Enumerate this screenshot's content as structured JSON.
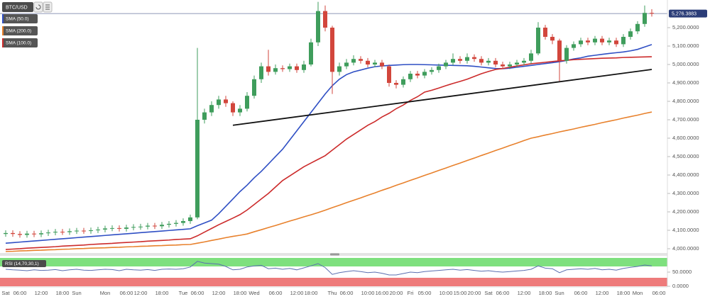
{
  "chart_data": {
    "type": "candlestick",
    "title": "BTC/USD",
    "categories": [
      "Sat",
      null,
      "06:00",
      null,
      null,
      "12:00",
      null,
      null,
      "18:00",
      null,
      "Sun",
      null,
      null,
      null,
      "Mon",
      null,
      null,
      "06:00",
      null,
      "12:00",
      null,
      null,
      "18:00",
      null,
      null,
      "Tue",
      null,
      "06:00",
      null,
      null,
      "12:00",
      null,
      null,
      "18:00",
      null,
      "Wed",
      null,
      null,
      "06:00",
      null,
      null,
      "12:00",
      null,
      "18:00",
      null,
      null,
      "Thu",
      null,
      "06:00",
      null,
      null,
      "10:00",
      null,
      "16:00",
      null,
      "20:00",
      null,
      "Fri",
      null,
      "05:00",
      null,
      null,
      "10:00",
      null,
      "15:00",
      null,
      "20:00",
      null,
      "Sat",
      null,
      "06:00",
      null,
      null,
      "12:00",
      null,
      null,
      "18:00",
      null,
      "Sun",
      null,
      null,
      "06:00",
      null,
      null,
      "12:00",
      null,
      null,
      "18:00",
      null,
      "Mon",
      null,
      null,
      "06:00",
      null
    ],
    "open": [
      4080,
      4085,
      4080,
      4075,
      4082,
      4078,
      4084,
      4088,
      4092,
      4090,
      4095,
      4098,
      4096,
      4100,
      4104,
      4110,
      4112,
      4108,
      4115,
      4118,
      4120,
      4125,
      4122,
      4130,
      4135,
      4140,
      4150,
      4170,
      4700,
      4740,
      4780,
      4810,
      4790,
      4740,
      4760,
      4830,
      4920,
      4990,
      4960,
      4980,
      4975,
      4990,
      4970,
      5000,
      5120,
      5290,
      5200,
      4960,
      4990,
      5010,
      5030,
      5020,
      5000,
      5010,
      4990,
      4900,
      4890,
      4920,
      4950,
      4940,
      4960,
      4970,
      4990,
      5010,
      5030,
      5020,
      5040,
      5030,
      5010,
      5020,
      5000,
      4990,
      5000,
      5010,
      5020,
      5060,
      5200,
      5150,
      5130,
      5020,
      5090,
      5110,
      5130,
      5120,
      5140,
      5120,
      5130,
      5110,
      5150,
      5180,
      5220,
      5280,
      null,
      null
    ],
    "high": [
      4100,
      4100,
      4095,
      4097,
      4097,
      4099,
      4103,
      4107,
      4107,
      4110,
      4113,
      4113,
      4115,
      4119,
      4125,
      4127,
      4127,
      4130,
      4133,
      4135,
      4140,
      4140,
      4145,
      4150,
      4155,
      4165,
      4185,
      5090,
      4760,
      4800,
      4830,
      4830,
      4800,
      4780,
      4850,
      4940,
      5010,
      5080,
      5000,
      4995,
      5005,
      5005,
      5020,
      5140,
      5340,
      5320,
      5210,
      5010,
      5030,
      5050,
      5045,
      5035,
      5025,
      5025,
      5000,
      4915,
      4935,
      4965,
      4965,
      4975,
      4985,
      5005,
      5025,
      5060,
      5045,
      5060,
      5055,
      5045,
      5035,
      5035,
      5015,
      5015,
      5025,
      5035,
      5080,
      5230,
      5215,
      5165,
      5140,
      5105,
      5125,
      5145,
      5145,
      5155,
      5155,
      5145,
      5145,
      5165,
      5195,
      5235,
      5320,
      5300,
      null,
      null
    ],
    "low": [
      4065,
      4065,
      4060,
      4060,
      4063,
      4063,
      4069,
      4073,
      4075,
      4075,
      4080,
      4081,
      4081,
      4085,
      4089,
      4095,
      4093,
      4093,
      4100,
      4103,
      4105,
      4107,
      4107,
      4115,
      4120,
      4125,
      4135,
      4160,
      4680,
      4720,
      4760,
      4770,
      4720,
      4720,
      4745,
      4815,
      4900,
      4940,
      4945,
      4960,
      4960,
      4955,
      4955,
      4990,
      5100,
      5180,
      4840,
      4940,
      4975,
      4995,
      5005,
      4985,
      4985,
      4975,
      4880,
      4870,
      4875,
      4905,
      4925,
      4925,
      4945,
      4955,
      4975,
      4995,
      5005,
      5005,
      5015,
      4995,
      4995,
      4985,
      4975,
      4975,
      4985,
      4995,
      5005,
      5050,
      5135,
      5110,
      4910,
      5005,
      5075,
      5095,
      5105,
      5105,
      5105,
      5105,
      5095,
      5095,
      5135,
      5165,
      5205,
      5260,
      null,
      null
    ],
    "close": [
      4085,
      4080,
      4075,
      4082,
      4078,
      4084,
      4088,
      4092,
      4090,
      4095,
      4098,
      4096,
      4100,
      4104,
      4110,
      4112,
      4108,
      4115,
      4118,
      4120,
      4125,
      4122,
      4130,
      4135,
      4140,
      4150,
      4170,
      4700,
      4740,
      4780,
      4810,
      4790,
      4740,
      4760,
      4830,
      4920,
      4990,
      4960,
      4980,
      4975,
      4990,
      4970,
      5000,
      5120,
      5290,
      5200,
      4960,
      4990,
      5010,
      5030,
      5020,
      5000,
      5010,
      4990,
      4900,
      4890,
      4920,
      4950,
      4940,
      4960,
      4970,
      4990,
      5010,
      5030,
      5020,
      5040,
      5030,
      5010,
      5020,
      5000,
      4990,
      5000,
      5010,
      5020,
      5060,
      5200,
      5150,
      5130,
      5020,
      5090,
      5110,
      5130,
      5120,
      5140,
      5120,
      5130,
      5110,
      5150,
      5180,
      5220,
      5280,
      5276,
      null,
      null
    ],
    "up_color": "#3f9d5c",
    "down_color": "#d2463c",
    "ylim": [
      3973,
      5350
    ],
    "yticks": [
      {
        "value": 4000,
        "label": "4,000.0000"
      },
      {
        "value": 4100,
        "label": "4,100.0000"
      },
      {
        "value": 4200,
        "label": "4,200.0000"
      },
      {
        "value": 4300,
        "label": "4,300.0000"
      },
      {
        "value": 4400,
        "label": "4,400.0000"
      },
      {
        "value": 4500,
        "label": "4,500.0000"
      },
      {
        "value": 4600,
        "label": "4,600.0000"
      },
      {
        "value": 4700,
        "label": "4,700.0000"
      },
      {
        "value": 4800,
        "label": "4,800.0000"
      },
      {
        "value": 4900,
        "label": "4,900.0000"
      },
      {
        "value": 5000,
        "label": "5,000.0000"
      },
      {
        "value": 5100,
        "label": "5,100.0000"
      },
      {
        "value": 5200,
        "label": "5,200.0000"
      }
    ],
    "grid": false,
    "series": [
      {
        "name": "SMA (50.0)",
        "color": "#2f4fc4",
        "values": [
          4030,
          4033,
          4036,
          4039,
          4042,
          4045,
          4048,
          4051,
          4054,
          4057,
          4060,
          4063,
          4066,
          4069,
          4072,
          4075,
          4078,
          4081,
          4084,
          4087,
          4090,
          4093,
          4096,
          4099,
          4102,
          4105,
          4108,
          4125,
          4140,
          4155,
          4190,
          4230,
          4270,
          4310,
          4345,
          4385,
          4420,
          4460,
          4500,
          4540,
          4590,
          4640,
          4690,
          4740,
          4790,
          4840,
          4885,
          4920,
          4945,
          4960,
          4970,
          4980,
          4988,
          4992,
          4995,
          4997,
          4999,
          5000,
          5000,
          4999,
          4998,
          4997,
          4996,
          4995,
          4994,
          4993,
          4990,
          4986,
          4982,
          4978,
          4977,
          4980,
          4985,
          4990,
          4995,
          5000,
          5005,
          5010,
          5015,
          5022,
          5030,
          5036,
          5045,
          5050,
          5055,
          5060,
          5064,
          5068,
          5074,
          5082,
          5095,
          5108,
          null,
          null
        ]
      },
      {
        "name": "SMA (200.0)",
        "color": "#e8812c",
        "values": [
          3985,
          3986,
          3988,
          3989,
          3991,
          3992,
          3994,
          3995,
          3997,
          3998,
          4000,
          4001,
          4003,
          4004,
          4005,
          4007,
          4008,
          4010,
          4011,
          4013,
          4014,
          4016,
          4017,
          4019,
          4020,
          4022,
          4023,
          4030,
          4037,
          4045,
          4052,
          4060,
          4067,
          4073,
          4080,
          4092,
          4103,
          4115,
          4126,
          4138,
          4150,
          4161,
          4173,
          4184,
          4196,
          4209,
          4223,
          4236,
          4250,
          4263,
          4276,
          4290,
          4303,
          4317,
          4330,
          4344,
          4357,
          4371,
          4384,
          4398,
          4411,
          4425,
          4438,
          4452,
          4465,
          4479,
          4492,
          4506,
          4519,
          4533,
          4546,
          4560,
          4573,
          4587,
          4600,
          4608,
          4617,
          4625,
          4634,
          4642,
          4650,
          4659,
          4667,
          4675,
          4684,
          4692,
          4700,
          4709,
          4717,
          4725,
          4734,
          4742,
          null,
          null
        ]
      },
      {
        "name": "SMA (100.0)",
        "color": "#cc2b2b",
        "values": [
          3996,
          3998,
          4000,
          4003,
          4005,
          4007,
          4009,
          4011,
          4014,
          4016,
          4018,
          4020,
          4023,
          4025,
          4027,
          4029,
          4032,
          4034,
          4036,
          4038,
          4041,
          4043,
          4045,
          4047,
          4050,
          4052,
          4054,
          4070,
          4090,
          4110,
          4130,
          4148,
          4166,
          4185,
          4210,
          4240,
          4270,
          4300,
          4335,
          4370,
          4395,
          4420,
          4445,
          4465,
          4485,
          4505,
          4535,
          4565,
          4595,
          4620,
          4645,
          4670,
          4690,
          4715,
          4735,
          4760,
          4780,
          4805,
          4825,
          4850,
          4860,
          4872,
          4885,
          4897,
          4908,
          4920,
          4935,
          4950,
          4962,
          4973,
          4978,
          4985,
          4992,
          4998,
          5004,
          5008,
          5012,
          5016,
          5020,
          5023,
          5026,
          5028,
          5030,
          5032,
          5034,
          5035,
          5036,
          5038,
          5039,
          5040,
          5041,
          5042,
          null,
          null
        ]
      }
    ],
    "trendline": {
      "color": "#111111",
      "x": [
        32,
        91
      ],
      "y": [
        4670,
        4973
      ]
    },
    "last_price": {
      "value": 5276.3883,
      "label": "5,276.3883",
      "color": "#2b3d78"
    },
    "rsi": {
      "name": "RSI (14,70,30,1)",
      "color": "#5b6fb0",
      "ylim": [
        0,
        100
      ],
      "yticks": [
        {
          "value": 0,
          "label": "0.0000"
        },
        {
          "value": 50,
          "label": "50.0000"
        }
      ],
      "upper_band": 70,
      "upper_color": "#7ee07e",
      "lower_band": 30,
      "lower_color": "#ee7b7b",
      "values": [
        60,
        58,
        57,
        55,
        58,
        56,
        57,
        59,
        55,
        58,
        60,
        57,
        56,
        58,
        60,
        59,
        55,
        60,
        58,
        57,
        59,
        56,
        60,
        61,
        60,
        62,
        68,
        88,
        82,
        80,
        78,
        70,
        58,
        60,
        68,
        72,
        74,
        62,
        64,
        60,
        63,
        58,
        65,
        72,
        80,
        66,
        42,
        48,
        52,
        55,
        52,
        48,
        50,
        46,
        40,
        40,
        45,
        50,
        48,
        52,
        54,
        56,
        58,
        60,
        57,
        59,
        56,
        53,
        55,
        52,
        50,
        52,
        54,
        56,
        60,
        72,
        64,
        62,
        48,
        58,
        60,
        62,
        60,
        63,
        58,
        60,
        57,
        63,
        67,
        70,
        75,
        72,
        null,
        null
      ]
    }
  }
}
